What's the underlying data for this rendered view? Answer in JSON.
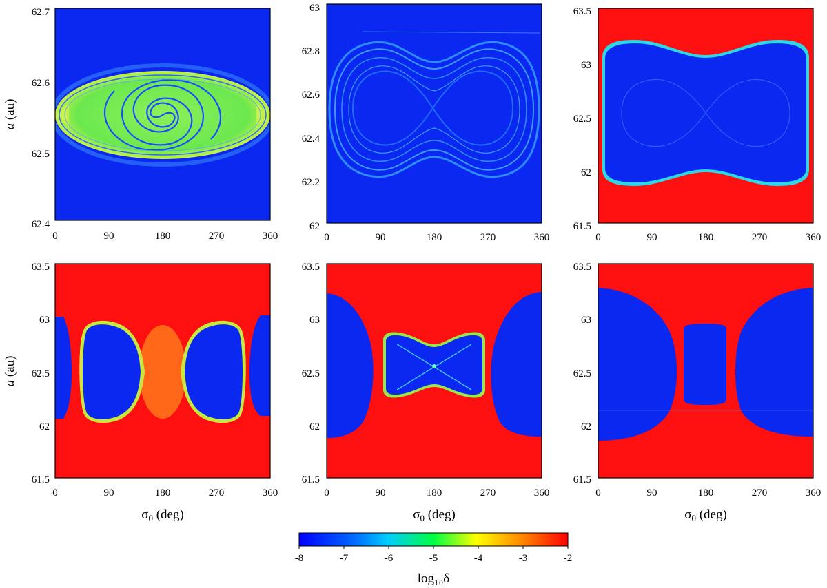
{
  "chart_data": [
    {
      "type": "heatmap",
      "panel": "top-left",
      "xlabel": "",
      "ylabel": "a (au)",
      "xlim": [
        0,
        360
      ],
      "ylim": [
        62.4,
        62.7
      ],
      "xticks": [
        "0",
        "90",
        "180",
        "270",
        "360"
      ],
      "yticks": [
        "62.4",
        "62.5",
        "62.6",
        "62.7"
      ],
      "features": {
        "background_log10_delta": -8,
        "resonance_island": {
          "center_sigma0": 180,
          "center_a": 62.555,
          "half_width_deg": 180,
          "half_height_au": 0.075,
          "log10_delta": -5.2,
          "spiral": true
        }
      }
    },
    {
      "type": "heatmap",
      "panel": "top-middle",
      "xlabel": "",
      "ylabel": "",
      "xlim": [
        0,
        360
      ],
      "ylim": [
        62.0,
        63.0
      ],
      "xticks": [
        "0",
        "90",
        "180",
        "270",
        "360"
      ],
      "yticks": [
        "62",
        "62.2",
        "62.4",
        "62.6",
        "62.8",
        "63"
      ],
      "features": {
        "background_log10_delta": -8,
        "separatrix_band": {
          "center_a": 62.57,
          "amplitude_au": 0.32,
          "log10_delta": -7
        },
        "figure_eight": {
          "center_sigma0": 175,
          "center_a": 62.57
        }
      }
    },
    {
      "type": "heatmap",
      "panel": "top-right",
      "xlabel": "",
      "ylabel": "",
      "xlim": [
        0,
        360
      ],
      "ylim": [
        61.5,
        63.5
      ],
      "xticks": [
        "0",
        "90",
        "180",
        "270",
        "360"
      ],
      "yticks": [
        "61.5",
        "62",
        "62.5",
        "63",
        "63.5"
      ],
      "features": {
        "background_log10_delta": -2,
        "stable_region": {
          "sigma0_range": [
            10,
            340
          ],
          "a_range": [
            61.9,
            63.2
          ],
          "log10_delta": -8
        }
      }
    },
    {
      "type": "heatmap",
      "panel": "bottom-left",
      "xlabel": "σ0 (deg)",
      "ylabel": "a (au)",
      "xlim": [
        0,
        360
      ],
      "ylim": [
        61.5,
        63.5
      ],
      "xticks": [
        "0",
        "90",
        "180",
        "270",
        "360"
      ],
      "yticks": [
        "61.5",
        "62",
        "62.5",
        "63",
        "63.5"
      ],
      "features": {
        "background_log10_delta": -2,
        "stable_islands": [
          {
            "sigma0_range": [
              45,
              150
            ],
            "a_range": [
              62.15,
              62.95
            ],
            "log10_delta": -8
          },
          {
            "sigma0_range": [
              210,
              315
            ],
            "a_range": [
              62.15,
              62.95
            ],
            "log10_delta": -8
          },
          {
            "sigma0_range": [
              0,
              28
            ],
            "a_range": [
              62.1,
              63.0
            ],
            "log10_delta": -8
          },
          {
            "sigma0_range": [
              330,
              360
            ],
            "a_range": [
              62.1,
              63.0
            ],
            "log10_delta": -8
          }
        ]
      }
    },
    {
      "type": "heatmap",
      "panel": "bottom-middle",
      "xlabel": "σ0 (deg)",
      "ylabel": "",
      "xlim": [
        0,
        360
      ],
      "ylim": [
        61.5,
        63.5
      ],
      "xticks": [
        "0",
        "90",
        "180",
        "270",
        "360"
      ],
      "yticks": [
        "61.5",
        "62",
        "62.5",
        "63",
        "63.5"
      ],
      "features": {
        "background_log10_delta": -2,
        "stable_islands": [
          {
            "sigma0_range": [
              0,
              82
            ],
            "a_range": [
              61.85,
              63.2
            ],
            "log10_delta": -8
          },
          {
            "sigma0_range": [
              265,
              360
            ],
            "a_range": [
              61.85,
              63.2
            ],
            "log10_delta": -8
          },
          {
            "sigma0_range": [
              98,
              252
            ],
            "a_range": [
              62.27,
              62.82
            ],
            "log10_delta": -8
          }
        ]
      }
    },
    {
      "type": "heatmap",
      "panel": "bottom-right",
      "xlabel": "σ0 (deg)",
      "ylabel": "",
      "xlim": [
        0,
        360
      ],
      "ylim": [
        61.5,
        63.5
      ],
      "xticks": [
        "0",
        "90",
        "180",
        "270",
        "360"
      ],
      "yticks": [
        "61.5",
        "62",
        "62.5",
        "63",
        "63.5"
      ],
      "features": {
        "background_log10_delta": -2,
        "stable_islands": [
          {
            "sigma0_range": [
              0,
              132
            ],
            "a_range": [
              61.8,
              63.25
            ],
            "log10_delta": -8
          },
          {
            "sigma0_range": [
              230,
              360
            ],
            "a_range": [
              61.8,
              63.25
            ],
            "log10_delta": -8
          },
          {
            "sigma0_range": [
              143,
              214
            ],
            "a_range": [
              62.22,
              62.87
            ],
            "log10_delta": -8
          }
        ]
      }
    }
  ],
  "colorbar": {
    "label": "log₁₀δ",
    "range": [
      -8,
      -2
    ],
    "ticks": [
      "-8",
      "-7",
      "-6",
      "-5",
      "-4",
      "-3",
      "-2"
    ],
    "colors": [
      "#0000ff",
      "#00ccff",
      "#00ff44",
      "#ffff00",
      "#ff8800",
      "#ff0000"
    ]
  },
  "colors": {
    "stable": "#0a28f0",
    "chaotic": "#ff1010",
    "island_green": "#6be84e",
    "band_blue": "#2d8cff"
  }
}
